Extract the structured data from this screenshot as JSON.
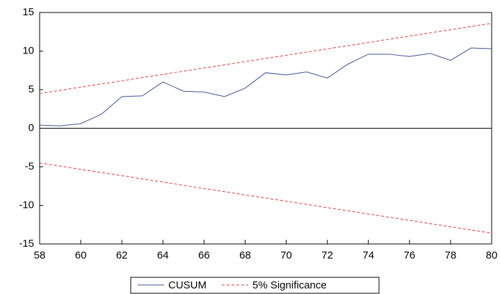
{
  "chart_data": {
    "type": "line",
    "x": [
      58,
      59,
      60,
      61,
      62,
      63,
      64,
      65,
      66,
      67,
      68,
      69,
      70,
      71,
      72,
      73,
      74,
      75,
      76,
      77,
      78,
      79,
      80
    ],
    "series": [
      {
        "name": "CUSUM",
        "color": "#3a4f9a",
        "dash": false,
        "values": [
          0.4,
          0.3,
          0.6,
          1.8,
          4.1,
          4.2,
          6.0,
          4.8,
          4.7,
          4.1,
          5.2,
          7.2,
          6.9,
          7.3,
          6.5,
          8.3,
          9.6,
          9.6,
          9.3,
          9.7,
          8.8,
          10.4,
          10.3
        ]
      },
      {
        "name": "5% Significance",
        "color": "#e8302a",
        "dash": true,
        "values": [
          4.5,
          4.91,
          5.33,
          5.74,
          6.15,
          6.57,
          6.98,
          7.4,
          7.81,
          8.22,
          8.64,
          9.05,
          9.46,
          9.88,
          10.29,
          10.7,
          11.12,
          11.53,
          11.95,
          12.36,
          12.77,
          13.19,
          13.6
        ]
      },
      {
        "color": "#e8302a",
        "dash": true,
        "values": [
          -4.5,
          -4.91,
          -5.33,
          -5.74,
          -6.15,
          -6.57,
          -6.98,
          -7.4,
          -7.81,
          -8.22,
          -8.64,
          -9.05,
          -9.46,
          -9.88,
          -10.29,
          -10.7,
          -11.12,
          -11.53,
          -11.95,
          -12.36,
          -12.77,
          -13.19,
          -13.6
        ]
      }
    ],
    "xlim": [
      58,
      80
    ],
    "xticks": [
      58,
      60,
      62,
      64,
      66,
      68,
      70,
      72,
      74,
      76,
      78,
      80
    ],
    "ylim": [
      -15,
      15
    ],
    "yticks": [
      -15,
      -10,
      -5,
      0,
      5,
      10,
      15
    ]
  }
}
